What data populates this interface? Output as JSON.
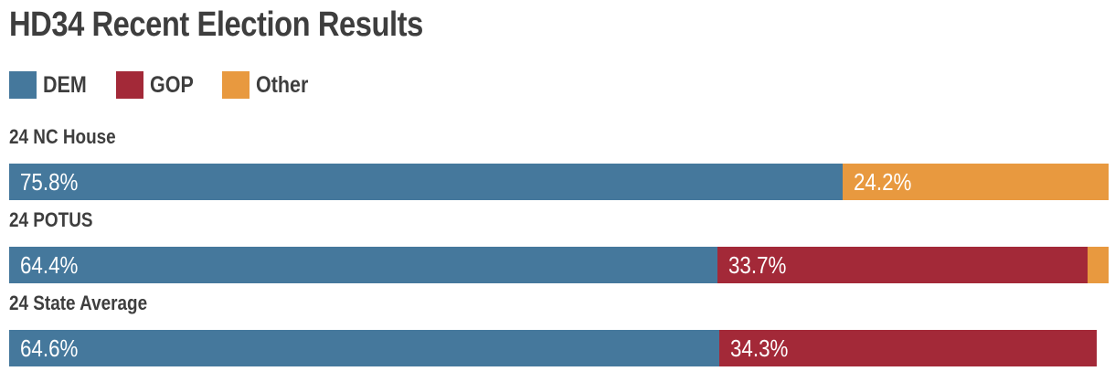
{
  "title": "HD34 Recent Election Results",
  "colors": {
    "dem": "#45789C",
    "gop": "#A32938",
    "other": "#E8993F",
    "heading_text": "#3E3E3E",
    "bar_value_text": "#FFFFFF",
    "background": "#FFFFFF"
  },
  "legend": {
    "items": [
      {
        "key": "dem",
        "label": "DEM"
      },
      {
        "key": "gop",
        "label": "GOP"
      },
      {
        "key": "other",
        "label": "Other"
      }
    ]
  },
  "rows": [
    {
      "label": "24 NC House",
      "segments": [
        {
          "party": "dem",
          "value": 75.8,
          "label": "75.8%"
        },
        {
          "party": "other",
          "value": 24.2,
          "label": "24.2%"
        }
      ]
    },
    {
      "label": "24 POTUS",
      "segments": [
        {
          "party": "dem",
          "value": 64.4,
          "label": "64.4%"
        },
        {
          "party": "gop",
          "value": 33.7,
          "label": "33.7%"
        },
        {
          "party": "other",
          "value": 1.9,
          "label": ""
        }
      ]
    },
    {
      "label": "24 State Average",
      "segments": [
        {
          "party": "dem",
          "value": 64.6,
          "label": "64.6%"
        },
        {
          "party": "gop",
          "value": 34.3,
          "label": "34.3%"
        }
      ]
    }
  ],
  "chart_data": {
    "type": "bar",
    "variant": "horizontal_stacked",
    "unit": "percent",
    "title": "HD34 Recent Election Results",
    "categories": [
      "24 NC House",
      "24 POTUS",
      "24 State Average"
    ],
    "series": [
      {
        "name": "DEM",
        "color": "#45789C",
        "values": [
          75.8,
          64.4,
          64.6
        ]
      },
      {
        "name": "GOP",
        "color": "#A32938",
        "values": [
          0,
          33.7,
          34.3
        ]
      },
      {
        "name": "Other",
        "color": "#E8993F",
        "values": [
          24.2,
          1.9,
          0
        ]
      }
    ],
    "xlim": [
      0,
      100
    ],
    "grid": false,
    "axis_ticks": "none",
    "legend_position": "top-left",
    "data_labels": "inside-left of each segment; hidden for very small segments"
  }
}
